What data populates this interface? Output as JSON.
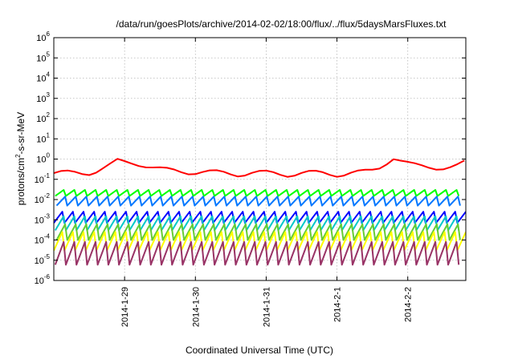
{
  "chart_data": {
    "type": "line",
    "title": "/data/run/goesPlots/archive/2014-02-02/18:00/flux/../flux/5daysMarsFluxes.txt",
    "xlabel": "Coordinated Universal Time (UTC)",
    "ylabel": {
      "base": "protons/cm",
      "sup": "2",
      "rest": "-s-sr-MeV"
    },
    "y_scale": "log",
    "ylim_exp": [
      -6,
      6
    ],
    "y_ticks": [
      {
        "base": "10",
        "exp": "-6",
        "value": -6
      },
      {
        "base": "10",
        "exp": "-5",
        "value": -5
      },
      {
        "base": "10",
        "exp": "-4",
        "value": -4
      },
      {
        "base": "10",
        "exp": "-3",
        "value": -3
      },
      {
        "base": "10",
        "exp": "-2",
        "value": -2
      },
      {
        "base": "10",
        "exp": "-1",
        "value": -1
      },
      {
        "base": "10",
        "exp": "0",
        "value": 0
      },
      {
        "base": "10",
        "exp": "1",
        "value": 1
      },
      {
        "base": "10",
        "exp": "2",
        "value": 2
      },
      {
        "base": "10",
        "exp": "3",
        "value": 3
      },
      {
        "base": "10",
        "exp": "4",
        "value": 4
      },
      {
        "base": "10",
        "exp": "5",
        "value": 5
      },
      {
        "base": "10",
        "exp": "6",
        "value": 6
      }
    ],
    "x_range_days": [
      0,
      5.82
    ],
    "x_ticks": [
      {
        "label": "2014-1-29",
        "day": 1
      },
      {
        "label": "2014-1-30",
        "day": 2
      },
      {
        "label": "2014-1-31",
        "day": 3
      },
      {
        "label": "2014-2-1",
        "day": 4
      },
      {
        "label": "2014-2-2",
        "day": 5
      }
    ],
    "grid": true,
    "legend": "none",
    "series": [
      {
        "color": "#ff0000",
        "baseline_flux": 0.2,
        "oscillation_period_days": 0.2,
        "spike_peaks": [
          {
            "day": 0.86,
            "flux": 1.0
          },
          {
            "day": 4.76,
            "flux": 1.1
          },
          {
            "day": 5.8,
            "flux": 0.9
          }
        ]
      },
      {
        "color": "#00ff00",
        "oscillation_period_days": 0.15,
        "min_flux": 0.015,
        "max_flux": 0.03
      },
      {
        "color": "#0077ff",
        "oscillation_period_days": 0.15,
        "min_flux": 0.005,
        "max_flux": 0.014
      },
      {
        "color": "#0000ff",
        "oscillation_period_days": 0.15,
        "min_flux": 0.0007,
        "max_flux": 0.0025
      },
      {
        "color": "#00c8c8",
        "oscillation_period_days": 0.15,
        "min_flux": 0.0003,
        "max_flux": 0.0015
      },
      {
        "color": "#66cc33",
        "oscillation_period_days": 0.15,
        "min_flux": 0.0001,
        "max_flux": 0.0006
      },
      {
        "color": "#ffff00",
        "oscillation_period_days": 0.15,
        "min_flux": 3e-05,
        "max_flux": 0.00025
      },
      {
        "color": "#993366",
        "oscillation_period_days": 0.15,
        "min_flux": 6e-06,
        "max_flux": 8e-05
      }
    ]
  }
}
